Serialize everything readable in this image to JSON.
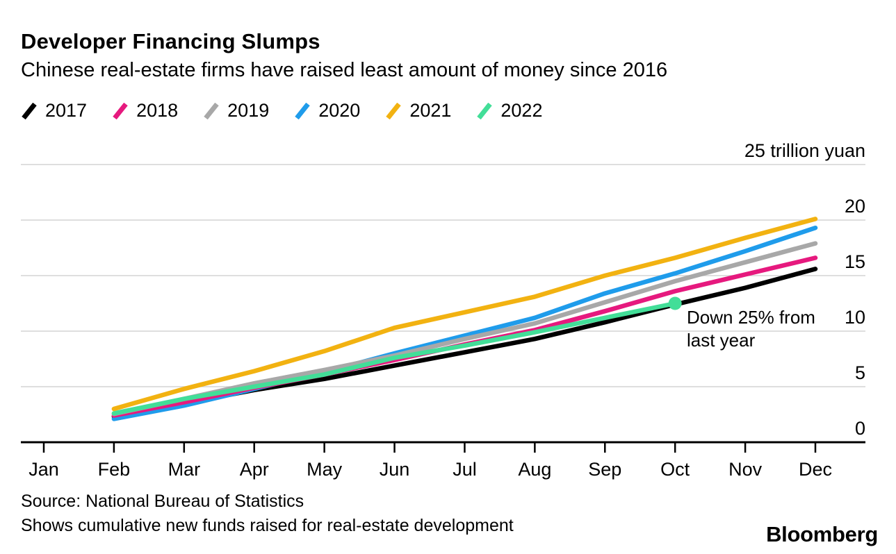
{
  "header": {
    "title": "Developer Financing Slumps",
    "subtitle": "Chinese real-estate firms have raised least amount of money since 2016"
  },
  "legend": [
    {
      "label": "2017",
      "color": "#000000"
    },
    {
      "label": "2018",
      "color": "#E6197E"
    },
    {
      "label": "2019",
      "color": "#A8A8A8"
    },
    {
      "label": "2020",
      "color": "#1F9CEB"
    },
    {
      "label": "2021",
      "color": "#F2B211"
    },
    {
      "label": "2022",
      "color": "#42DE98"
    }
  ],
  "chart_data": {
    "type": "line",
    "title": "Developer Financing Slumps",
    "subtitle": "Chinese real-estate firms have raised least amount of money since 2016",
    "xlabel": "",
    "ylabel": "trillion yuan",
    "x_categories": [
      "Jan",
      "Feb",
      "Mar",
      "Apr",
      "May",
      "Jun",
      "Jul",
      "Aug",
      "Sep",
      "Oct",
      "Nov",
      "Dec"
    ],
    "y_ticks": [
      0,
      5,
      10,
      15,
      20,
      25
    ],
    "y_tick_labels": [
      "0",
      "5",
      "10",
      "15",
      "20",
      "25 trillion yuan"
    ],
    "ylim": [
      0,
      25
    ],
    "grid": "horizontal",
    "legend_position": "top",
    "series": [
      {
        "name": "2017",
        "color": "#000000",
        "start_category": "Feb",
        "values": [
          2.3,
          3.5,
          4.7,
          5.7,
          6.9,
          8.1,
          9.3,
          10.8,
          12.4,
          13.9,
          15.6
        ]
      },
      {
        "name": "2018",
        "color": "#E6197E",
        "start_category": "Feb",
        "values": [
          2.4,
          3.6,
          4.9,
          6.1,
          7.4,
          8.8,
          10.1,
          11.8,
          13.6,
          15.1,
          16.6
        ]
      },
      {
        "name": "2019",
        "color": "#A8A8A8",
        "start_category": "Feb",
        "values": [
          2.55,
          3.9,
          5.3,
          6.5,
          7.8,
          9.3,
          10.7,
          12.6,
          14.5,
          16.2,
          17.9
        ]
      },
      {
        "name": "2020",
        "color": "#1F9CEB",
        "start_category": "Feb",
        "values": [
          2.1,
          3.3,
          4.8,
          6.3,
          8.0,
          9.6,
          11.2,
          13.4,
          15.2,
          17.2,
          19.3
        ]
      },
      {
        "name": "2021",
        "color": "#F2B211",
        "start_category": "Feb",
        "values": [
          3.0,
          4.8,
          6.4,
          8.2,
          10.3,
          11.7,
          13.1,
          15.0,
          16.6,
          18.4,
          20.1
        ]
      },
      {
        "name": "2022",
        "color": "#42DE98",
        "start_category": "Feb",
        "end_marker": true,
        "values": [
          2.6,
          3.9,
          5.0,
          6.1,
          7.6,
          8.7,
          9.9,
          11.2,
          12.5
        ]
      }
    ],
    "annotation": {
      "line1": "Down 25% from",
      "line2": "last year",
      "anchor_series": "2022",
      "anchor_category": "Oct",
      "anchor_value": 12.5
    }
  },
  "footer": {
    "source": "Source: National Bureau of Statistics",
    "note": "Shows cumulative new funds raised for real-estate development",
    "brand": "Bloomberg"
  },
  "style_colors": {
    "gridline": "#D3D3D3",
    "axis": "#000000",
    "text": "#000000"
  }
}
